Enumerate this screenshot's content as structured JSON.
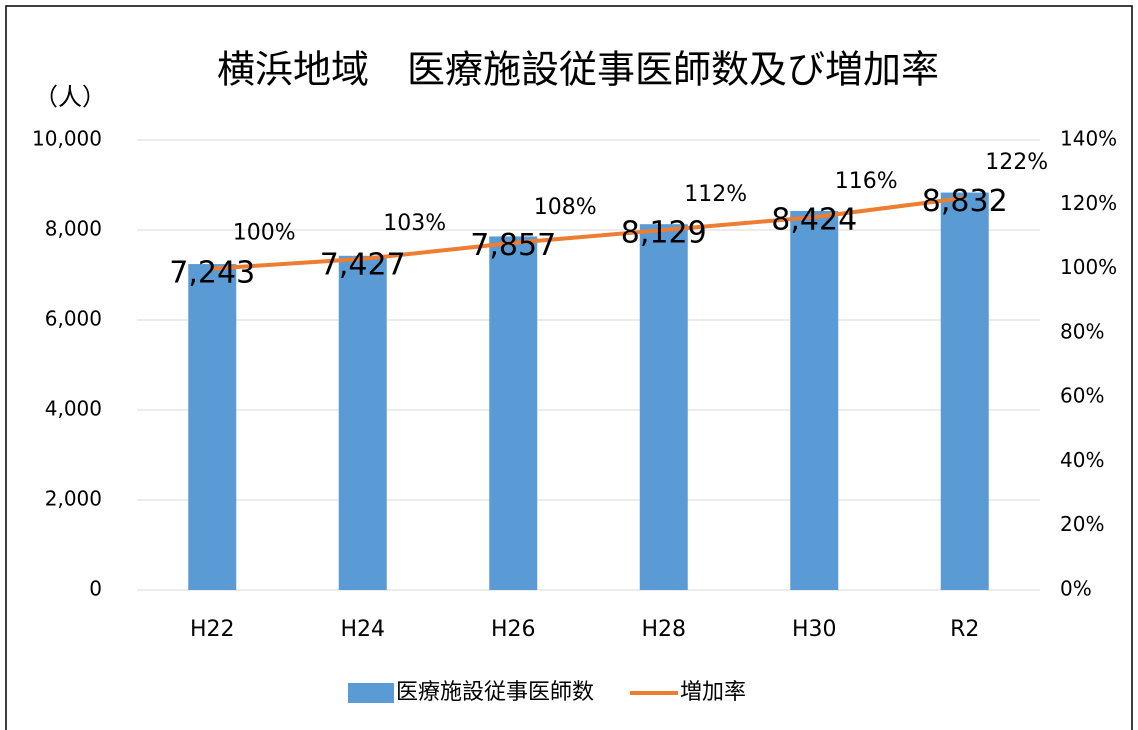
{
  "chart_data": {
    "type": "bar-line",
    "title": "横浜地域　医療施設従事医師数及び増加率",
    "y_unit_label": "（人）",
    "categories": [
      "H22",
      "H24",
      "H26",
      "H28",
      "H30",
      "R2"
    ],
    "series": [
      {
        "name": "医療施設従事医師数",
        "type": "bar",
        "color": "#5b9bd5",
        "values": [
          7243,
          7427,
          7857,
          8129,
          8424,
          8832
        ],
        "value_labels": [
          "7,243",
          "7,427",
          "7,857",
          "8,129",
          "8,424",
          "8,832"
        ]
      },
      {
        "name": "増加率",
        "type": "line",
        "axis": "y2",
        "color": "#ed7d31",
        "values": [
          100,
          103,
          108,
          112,
          116,
          122
        ],
        "value_labels": [
          "100%",
          "103%",
          "108%",
          "112%",
          "116%",
          "122%"
        ]
      }
    ],
    "ylim": [
      0,
      10000
    ],
    "yticks": [
      0,
      {
        "value": 2000,
        "label": "2,000"
      },
      {
        "value": 4000,
        "label": "4,000"
      },
      {
        "value": 6000,
        "label": "6,000"
      },
      {
        "value": 8000,
        "label": "8,000"
      },
      {
        "value": 10000,
        "label": "10,000"
      }
    ],
    "y2lim": [
      0,
      140
    ],
    "y2ticks": [
      {
        "value": 0,
        "label": "0%"
      },
      {
        "value": 20,
        "label": "20%"
      },
      {
        "value": 40,
        "label": "40%"
      },
      {
        "value": 60,
        "label": "60%"
      },
      {
        "value": 80,
        "label": "80%"
      },
      {
        "value": 100,
        "label": "100%"
      },
      {
        "value": 120,
        "label": "120%"
      },
      {
        "value": 140,
        "label": "140%"
      }
    ],
    "grid": true
  }
}
